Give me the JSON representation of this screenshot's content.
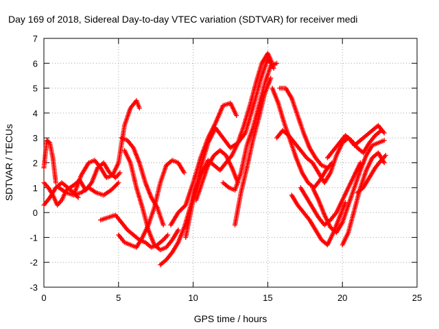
{
  "chart_data": {
    "type": "scatter",
    "title": "Day 169 of 2018, Sidereal Day-to-day VTEC variation (SDTVAR) for receiver medi",
    "xlabel": "GPS time / hours",
    "ylabel": "SDTVAR / TECUs",
    "xlim": [
      0,
      25
    ],
    "ylim": [
      -3,
      7
    ],
    "xticks": [
      0,
      5,
      10,
      15,
      20,
      25
    ],
    "yticks": [
      -3,
      -2,
      -1,
      0,
      1,
      2,
      3,
      4,
      5,
      6,
      7
    ],
    "grid": true,
    "legend": "none",
    "marker": "+",
    "color": "#ff0000",
    "series": [
      {
        "x": [
          0.0,
          0.2,
          0.4,
          0.6,
          0.8
        ],
        "y": [
          1.8,
          2.9,
          2.8,
          2.2,
          1.2
        ]
      },
      {
        "x": [
          0.0,
          0.3,
          0.6,
          0.9,
          1.2,
          1.5,
          2.0,
          2.4,
          2.8,
          3.2,
          3.6,
          4.0,
          4.4,
          4.8,
          5.1
        ],
        "y": [
          1.2,
          1.0,
          0.7,
          0.3,
          0.5,
          0.9,
          1.1,
          1.3,
          0.9,
          1.2,
          1.8,
          2.0,
          1.6,
          1.4,
          1.6
        ]
      },
      {
        "x": [
          0.0,
          0.4,
          0.8,
          1.2,
          1.6,
          2.0,
          2.3
        ],
        "y": [
          0.3,
          0.6,
          1.0,
          1.2,
          1.0,
          0.8,
          0.6
        ]
      },
      {
        "x": [
          1.0,
          1.5,
          2.0,
          2.5,
          3.0,
          3.5,
          4.0,
          4.5,
          5.0
        ],
        "y": [
          1.0,
          0.8,
          0.7,
          0.8,
          1.0,
          0.8,
          0.7,
          0.9,
          1.2
        ]
      },
      {
        "x": [
          2.0,
          2.5,
          3.0,
          3.4,
          3.8,
          4.2,
          4.6,
          5.0,
          5.4,
          5.8,
          6.2,
          6.4
        ],
        "y": [
          0.7,
          1.5,
          2.0,
          2.1,
          1.8,
          1.4,
          1.5,
          2.0,
          3.5,
          4.2,
          4.5,
          4.2
        ]
      },
      {
        "x": [
          3.8,
          4.3,
          4.8,
          5.2,
          5.6,
          6.0,
          6.4,
          6.8,
          7.2,
          7.6,
          8.0,
          8.3
        ],
        "y": [
          -0.3,
          -0.2,
          -0.1,
          -0.4,
          -0.7,
          -0.9,
          -1.1,
          -1.2,
          -1.4,
          -1.3,
          -1.1,
          -0.9
        ]
      },
      {
        "x": [
          5.0,
          5.4,
          5.8,
          6.2,
          6.6,
          7.0,
          7.4,
          7.8,
          8.2,
          8.6,
          9.0,
          9.4
        ],
        "y": [
          -0.9,
          -1.2,
          -1.3,
          -1.4,
          -1.0,
          -0.5,
          0.2,
          1.2,
          1.9,
          2.1,
          2.0,
          1.6
        ]
      },
      {
        "x": [
          5.2,
          5.6,
          6.0,
          6.4,
          6.8,
          7.2,
          7.6,
          8.0
        ],
        "y": [
          3.0,
          2.9,
          2.6,
          2.0,
          1.2,
          0.6,
          0.2,
          -0.5
        ]
      },
      {
        "x": [
          5.4,
          5.8,
          6.2,
          6.6,
          7.0,
          7.4,
          7.8,
          8.2,
          8.6,
          9.0
        ],
        "y": [
          2.5,
          2.0,
          1.0,
          0.2,
          -0.7,
          -1.3,
          -1.5,
          -1.4,
          -1.1,
          -0.7
        ]
      },
      {
        "x": [
          7.8,
          8.2,
          8.6,
          9.0,
          9.4,
          9.8,
          10.2,
          10.6,
          11.0,
          11.4,
          11.8,
          12.2,
          12.6,
          13.0,
          13.4,
          13.8,
          14.2,
          14.6,
          15.0,
          15.3
        ],
        "y": [
          -2.1,
          -1.9,
          -1.6,
          -1.2,
          -0.6,
          0.2,
          1.0,
          1.6,
          2.1,
          1.9,
          1.7,
          2.0,
          2.3,
          2.8,
          3.5,
          4.3,
          5.2,
          6.0,
          6.4,
          6.0
        ]
      },
      {
        "x": [
          8.5,
          9.0,
          9.5,
          10.0,
          10.5,
          11.0,
          11.5,
          12.0,
          12.5,
          12.9
        ],
        "y": [
          -0.5,
          0.0,
          0.3,
          1.2,
          2.2,
          3.0,
          3.6,
          4.3,
          4.4,
          3.9
        ]
      },
      {
        "x": [
          9.5,
          10.0,
          10.5,
          11.0,
          11.5,
          12.0,
          12.5,
          13.0,
          13.5,
          14.0,
          14.5,
          15.0,
          15.4
        ],
        "y": [
          -1.0,
          0.5,
          1.8,
          2.8,
          3.4,
          3.0,
          2.6,
          2.8,
          3.2,
          4.2,
          5.3,
          6.2,
          5.8
        ]
      },
      {
        "x": [
          10.2,
          10.6,
          11.0,
          11.4,
          11.8,
          12.2,
          12.6,
          13.0
        ],
        "y": [
          0.5,
          1.2,
          1.9,
          2.3,
          2.5,
          2.3,
          1.8,
          1.2
        ]
      },
      {
        "x": [
          12.0,
          12.4,
          12.8,
          13.2,
          13.6,
          14.0,
          14.4,
          14.8,
          15.2,
          15.6
        ],
        "y": [
          1.2,
          1.0,
          0.9,
          1.6,
          2.7,
          3.4,
          4.3,
          5.2,
          5.9,
          6.0
        ]
      },
      {
        "x": [
          12.8,
          13.2,
          13.6,
          14.0,
          14.4,
          14.8,
          15.2
        ],
        "y": [
          -0.5,
          0.8,
          1.8,
          2.9,
          3.8,
          4.8,
          5.4
        ]
      },
      {
        "x": [
          15.3,
          15.7,
          16.1,
          16.5,
          16.9,
          17.3,
          17.7,
          18.1,
          18.5,
          18.9,
          19.3
        ],
        "y": [
          5.0,
          4.4,
          3.6,
          2.9,
          2.2,
          1.6,
          1.2,
          1.0,
          1.3,
          1.7,
          2.0
        ]
      },
      {
        "x": [
          15.6,
          16.0,
          16.4,
          16.8,
          17.2,
          17.6,
          18.0,
          18.4,
          18.8,
          19.2,
          19.6,
          20.0,
          20.4,
          20.8,
          21.2,
          21.6,
          22.0,
          22.4,
          22.8
        ],
        "y": [
          3.0,
          3.3,
          3.1,
          2.8,
          2.5,
          2.2,
          2.0,
          1.6,
          1.2,
          1.6,
          2.3,
          2.8,
          3.0,
          2.7,
          2.9,
          3.1,
          3.3,
          3.5,
          3.2
        ]
      },
      {
        "x": [
          15.8,
          16.2,
          16.6,
          17.0,
          17.4,
          17.8,
          18.2,
          18.6,
          19.0
        ],
        "y": [
          5.0,
          5.0,
          4.6,
          3.9,
          3.2,
          2.6,
          2.2,
          1.9,
          1.8
        ]
      },
      {
        "x": [
          16.6,
          17.0,
          17.4,
          17.8,
          18.2,
          18.6,
          19.0,
          19.4,
          19.8,
          20.2
        ],
        "y": [
          0.7,
          0.3,
          0.0,
          -0.3,
          -0.7,
          -1.1,
          -1.3,
          -0.8,
          -0.2,
          0.4
        ]
      },
      {
        "x": [
          17.2,
          17.6,
          18.0,
          18.4,
          18.8,
          19.2,
          19.6,
          20.0,
          20.4,
          20.8,
          21.2
        ],
        "y": [
          1.0,
          0.6,
          0.2,
          -0.2,
          -0.5,
          -0.3,
          0.0,
          0.5,
          1.0,
          1.5,
          2.0
        ]
      },
      {
        "x": [
          18.0,
          18.4,
          18.8,
          19.2,
          19.6,
          20.0,
          20.4,
          20.8,
          21.2,
          21.6,
          22.0,
          22.4,
          22.8
        ],
        "y": [
          1.0,
          0.5,
          -0.1,
          -0.6,
          -0.8,
          -0.4,
          0.3,
          1.0,
          1.7,
          2.3,
          2.7,
          2.8,
          2.9
        ]
      },
      {
        "x": [
          19.0,
          19.4,
          19.8,
          20.2,
          20.6,
          21.0,
          21.4,
          21.8,
          22.2,
          22.6
        ],
        "y": [
          2.2,
          2.5,
          2.8,
          3.1,
          2.9,
          2.6,
          2.4,
          2.8,
          3.1,
          3.3
        ]
      },
      {
        "x": [
          20.0,
          20.4,
          20.8,
          21.2,
          21.6,
          22.0,
          22.4,
          22.8
        ],
        "y": [
          -1.3,
          -0.8,
          0.1,
          1.0,
          1.7,
          2.2,
          2.4,
          2.0
        ]
      },
      {
        "x": [
          21.0,
          21.4,
          21.8,
          22.2,
          22.6,
          22.9
        ],
        "y": [
          0.8,
          1.0,
          1.4,
          1.8,
          2.1,
          2.3
        ]
      }
    ]
  }
}
